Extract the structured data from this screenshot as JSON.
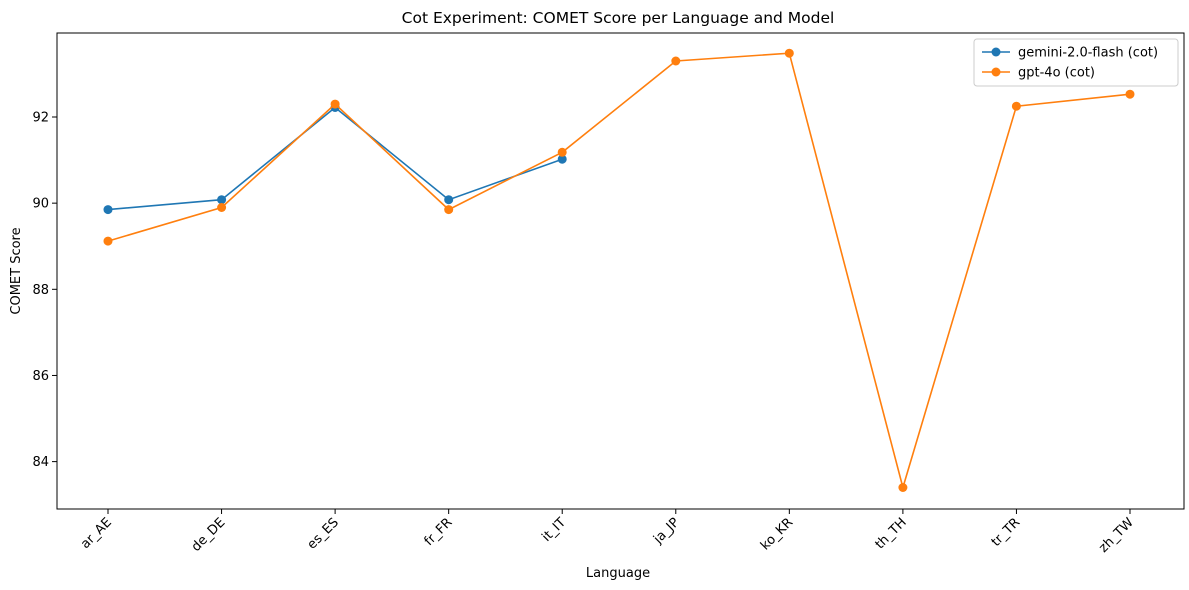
{
  "chart_data": {
    "type": "line",
    "title": "Cot Experiment: COMET Score per Language and Model",
    "xlabel": "Language",
    "ylabel": "COMET Score",
    "categories": [
      "ar_AE",
      "de_DE",
      "es_ES",
      "fr_FR",
      "it_IT",
      "ja_JP",
      "ko_KR",
      "th_TH",
      "tr_TR",
      "zh_TW"
    ],
    "yticks": [
      84,
      86,
      88,
      90,
      92
    ],
    "ylim": [
      82.9,
      93.95
    ],
    "grid": false,
    "legend_position": "top-right",
    "series": [
      {
        "name": "gemini-2.0-flash (cot)",
        "color": "#1f77b4",
        "values": [
          89.85,
          90.08,
          92.22,
          90.08,
          91.02,
          null,
          null,
          null,
          null,
          null
        ]
      },
      {
        "name": "gpt-4o (cot)",
        "color": "#ff7f0e",
        "values": [
          89.12,
          89.9,
          92.3,
          89.85,
          91.18,
          93.3,
          93.48,
          83.4,
          92.25,
          92.53
        ]
      }
    ]
  }
}
